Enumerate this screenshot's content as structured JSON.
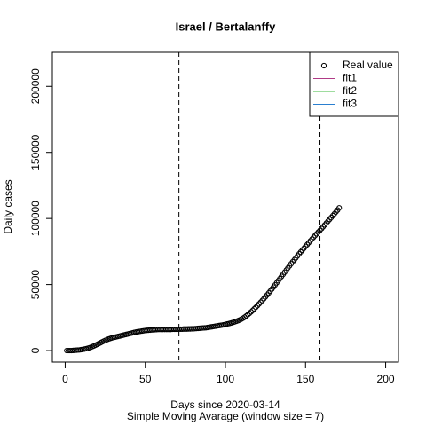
{
  "chart_data": {
    "type": "scatter",
    "title": "Israel / Bertalanffy",
    "x_label": "Days since 2020-03-14",
    "subtitle": "Simple Moving Avarage (window size = 7)",
    "y_label": "Daily cases",
    "xlim": [
      -8,
      208
    ],
    "xticks": [
      0,
      50,
      100,
      150,
      200
    ],
    "ylim": [
      -8700,
      225700
    ],
    "yticks": [
      0,
      50000,
      100000,
      150000,
      200000
    ],
    "vlines": [
      71,
      159
    ],
    "legend": "topright",
    "series": [
      {
        "name": "Real value",
        "color": "#000000",
        "x": [
          1,
          2,
          3,
          4,
          5,
          6,
          7,
          8,
          9,
          10,
          11,
          12,
          13,
          14,
          15,
          16,
          17,
          18,
          19,
          20,
          21,
          22,
          23,
          24,
          25,
          26,
          27,
          28,
          29,
          30,
          31,
          32,
          33,
          34,
          35,
          36,
          37,
          38,
          39,
          40,
          41,
          42,
          43,
          44,
          45,
          46,
          47,
          48,
          49,
          50,
          51,
          52,
          53,
          54,
          55,
          56,
          57,
          58,
          59,
          60,
          61,
          62,
          63,
          64,
          65,
          66,
          67,
          68,
          69,
          70,
          71,
          72,
          73,
          74,
          75,
          76,
          77,
          78,
          79,
          80,
          81,
          82,
          83,
          84,
          85,
          86,
          87,
          88,
          89,
          90,
          91,
          92,
          93,
          94,
          95,
          96,
          97,
          98,
          99,
          100,
          101,
          102,
          103,
          104,
          105,
          106,
          107,
          108,
          109,
          110,
          111,
          112,
          113,
          114,
          115,
          116,
          117,
          118,
          119,
          120,
          121,
          122,
          123,
          124,
          125,
          126,
          127,
          128,
          129,
          130,
          131,
          132,
          133,
          134,
          135,
          136,
          137,
          138,
          139,
          140,
          141,
          142,
          143,
          144,
          145,
          146,
          147,
          148,
          149,
          150,
          151,
          152,
          153,
          154,
          155,
          156,
          157,
          158,
          159,
          160,
          161,
          162,
          163,
          164,
          165,
          166,
          167,
          168,
          169,
          170,
          171
        ],
        "values": [
          0,
          0,
          0,
          0,
          100,
          200,
          300,
          400,
          500,
          700,
          900,
          1100,
          1400,
          1700,
          2100,
          2500,
          3000,
          3500,
          4100,
          4700,
          5300,
          5900,
          6500,
          7100,
          7700,
          8200,
          8700,
          9100,
          9500,
          9800,
          10100,
          10400,
          10700,
          11000,
          11300,
          11600,
          11900,
          12200,
          12500,
          12800,
          13100,
          13400,
          13700,
          14000,
          14200,
          14400,
          14600,
          14800,
          15000,
          15200,
          15300,
          15400,
          15500,
          15600,
          15700,
          15800,
          15900,
          16000,
          16000,
          16000,
          16000,
          16000,
          16000,
          16000,
          16000,
          16000,
          16100,
          16100,
          16100,
          16100,
          16200,
          16200,
          16200,
          16300,
          16300,
          16300,
          16400,
          16400,
          16500,
          16500,
          16600,
          16700,
          16800,
          16900,
          17000,
          17100,
          17200,
          17300,
          17500,
          17700,
          17900,
          18100,
          18300,
          18500,
          18700,
          18900,
          19100,
          19300,
          19500,
          19800,
          20100,
          20400,
          20700,
          21000,
          21400,
          21800,
          22200,
          22700,
          23200,
          23800,
          24500,
          25300,
          26200,
          27200,
          28200,
          29300,
          30400,
          31600,
          32800,
          34000,
          35300,
          36600,
          37900,
          39300,
          40700,
          42100,
          43600,
          45100,
          46600,
          48100,
          49700,
          51300,
          52900,
          54500,
          56100,
          57700,
          59300,
          60900,
          62500,
          64100,
          65700,
          67200,
          68700,
          70200,
          71700,
          73200,
          74600,
          76000,
          77400,
          78800,
          80200,
          81600,
          83000,
          84400,
          85800,
          87100,
          88400,
          89700,
          91000,
          92300,
          93700,
          95100,
          96500,
          97900,
          99300,
          100700,
          102100,
          103500,
          104900,
          106400,
          108000
        ]
      },
      {
        "name": "fit1",
        "color": "#b03a86",
        "x": [],
        "values": []
      },
      {
        "name": "fit2",
        "color": "#3cb83c",
        "x": [],
        "values": []
      },
      {
        "name": "fit3",
        "color": "#2a7fd0",
        "x": [],
        "values": []
      }
    ]
  }
}
